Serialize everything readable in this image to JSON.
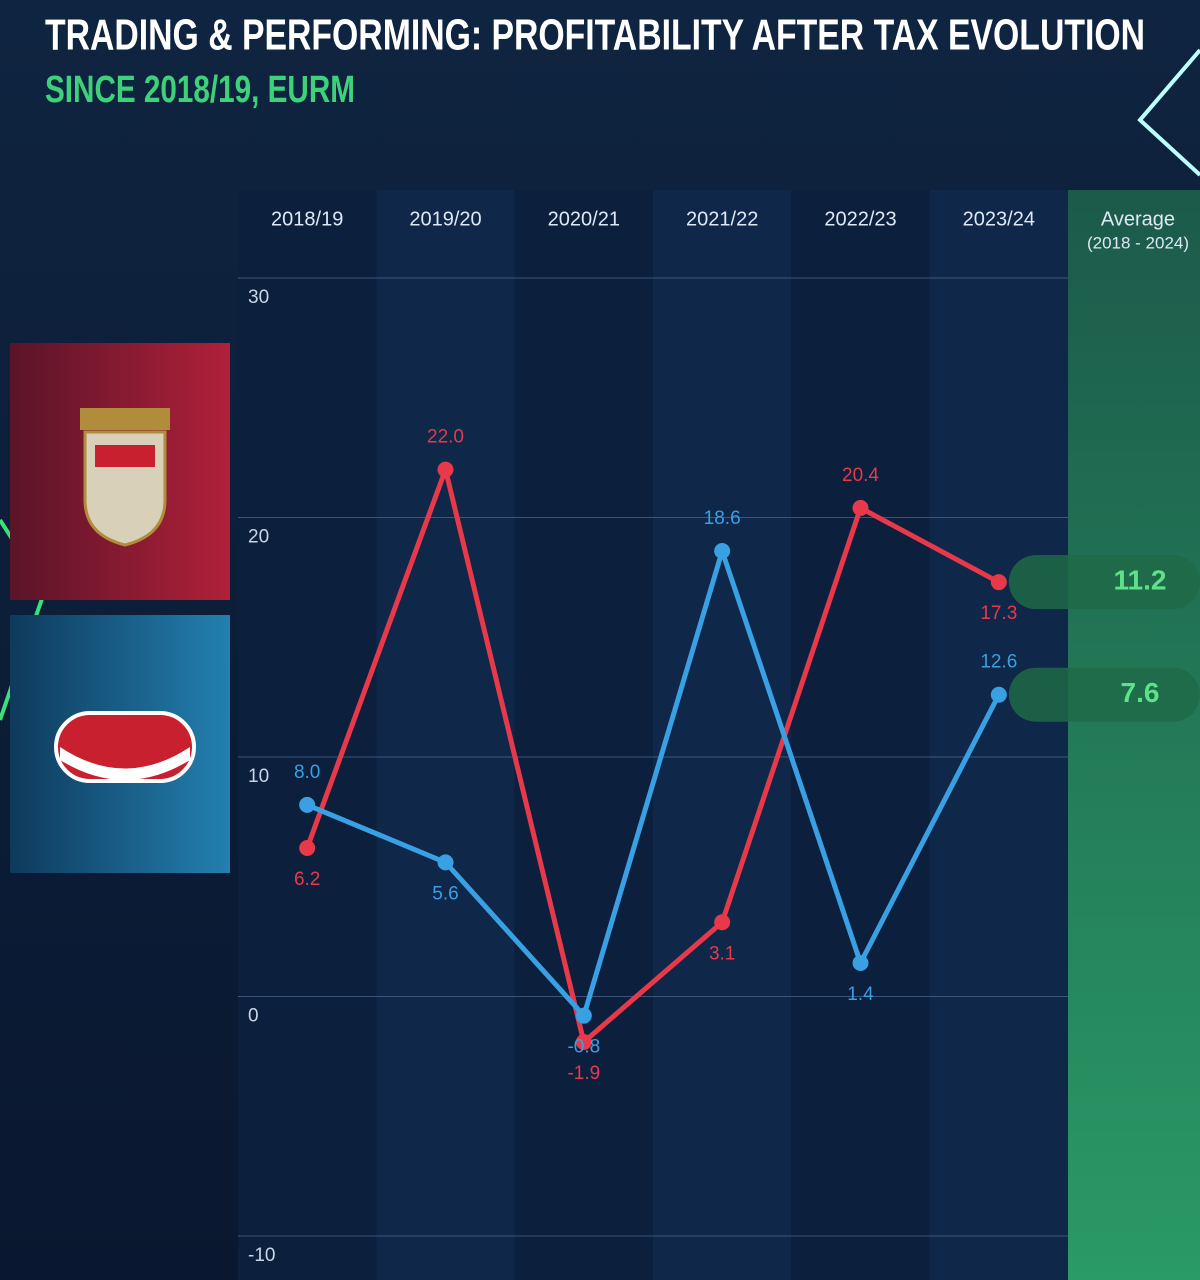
{
  "chart_data": {
    "type": "line",
    "title": "TRADING & PERFORMING: PROFITABILITY AFTER TAX EVOLUTION",
    "subtitle": "SINCE 2018/19, EURM",
    "categories": [
      "2018/19",
      "2019/20",
      "2020/21",
      "2021/22",
      "2022/23",
      "2023/24"
    ],
    "series": [
      {
        "color": "#e8394b",
        "values": [
          6.2,
          22.0,
          -1.9,
          3.1,
          20.4,
          17.3
        ],
        "value_labels": [
          "6.2",
          "22.0",
          "-1.9",
          "3.1",
          "20.4",
          "17.3"
        ]
      },
      {
        "color": "#3aa0e4",
        "values": [
          8.0,
          5.6,
          -0.8,
          18.6,
          1.4,
          12.6
        ],
        "value_labels": [
          "8.0",
          "5.6",
          "-0.8",
          "18.6",
          "1.4",
          "12.6"
        ]
      }
    ],
    "average": {
      "label": "Average",
      "period": "(2018 - 2024)",
      "values": [
        11.2,
        7.6
      ]
    },
    "ylim": [
      -10,
      30
    ],
    "yticks": [
      -10,
      0,
      10,
      20,
      30
    ],
    "grid": true
  }
}
